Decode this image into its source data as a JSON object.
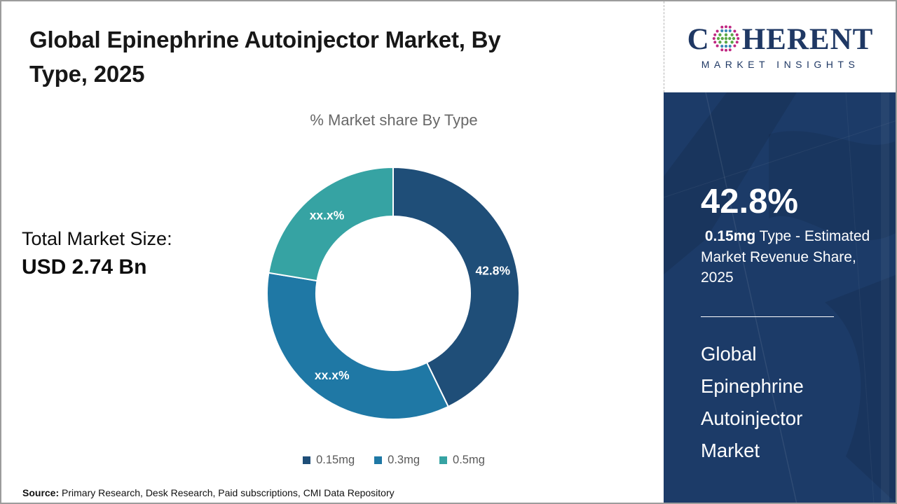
{
  "header": {
    "title_lines": [
      "Global Epinephrine Autoinjector Market, By",
      "Type, 2025"
    ]
  },
  "logo": {
    "part1": "C",
    "part2": "HERENT",
    "tagline": "MARKET INSIGHTS",
    "navy": "#1f3864",
    "dot_green": "#5aa746",
    "dot_blue": "#3a87b7",
    "dot_magenta": "#c02882"
  },
  "left_panel": {
    "total_label": "Total Market Size:",
    "total_value": "USD 2.74 Bn"
  },
  "chart_data": {
    "type": "pie",
    "subtype": "donut",
    "title": "% Market share By Type",
    "categories": [
      "0.15mg",
      "0.3mg",
      "0.5mg"
    ],
    "values": [
      42.8,
      34.8,
      22.4
    ],
    "slice_labels": [
      "42.8%",
      "xx.x%",
      "xx.x%"
    ],
    "colors": [
      "#1f4e78",
      "#1f78a5",
      "#36a3a3"
    ],
    "donut_hole_ratio": 0.61,
    "start_angle_deg": 0,
    "legend_position": "bottom",
    "label_color": "#ffffff"
  },
  "sidebar": {
    "stat_value": "42.8%",
    "stat_desc_bold": " 0.15mg",
    "stat_desc_rest": " Type - Estimated Market Revenue Share, 2025",
    "market_name_lines": [
      "Global",
      "Epinephrine",
      "Autoinjector",
      "Market"
    ],
    "bg_color": "#1c3b68"
  },
  "footer": {
    "source_label": "Source:",
    "source_text": " Primary Research, Desk Research, Paid subscriptions, CMI Data Repository"
  }
}
